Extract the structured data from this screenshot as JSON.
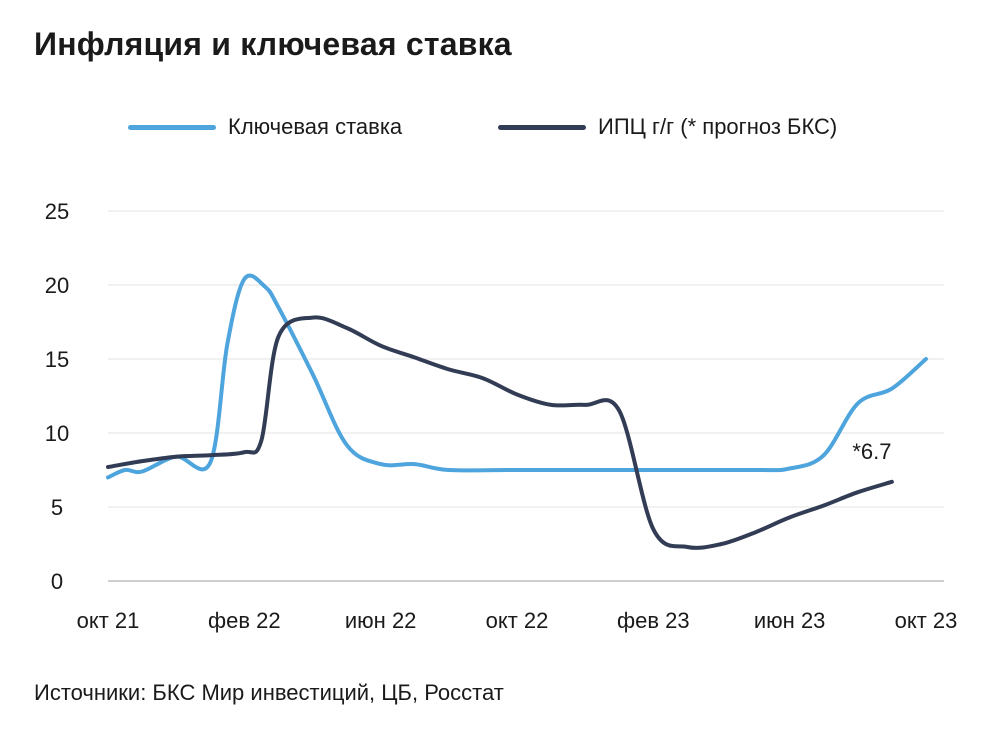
{
  "chart_data": {
    "type": "line",
    "title": "Инфляция и ключевая ставка",
    "x_ticks": [
      "окт 21",
      "фев 22",
      "июн 22",
      "окт 22",
      "фев 23",
      "июн 23",
      "окт 23"
    ],
    "yticks": [
      "0",
      "5",
      "10",
      "15",
      "20",
      "25"
    ],
    "ylim": [
      0,
      25
    ],
    "grid": true,
    "legend_position": "top",
    "series": [
      {
        "name": "Ключевая ставка",
        "color": "#4ea4dc",
        "points": [
          [
            0,
            7.0
          ],
          [
            0.5,
            7.5
          ],
          [
            1,
            7.4
          ],
          [
            2,
            8.4
          ],
          [
            3,
            8.0
          ],
          [
            3.5,
            16.0
          ],
          [
            4,
            20.4
          ],
          [
            4.6,
            19.9
          ],
          [
            5,
            18.5
          ],
          [
            6,
            14.0
          ],
          [
            7,
            9.2
          ],
          [
            8,
            7.9
          ],
          [
            9,
            7.9
          ],
          [
            10,
            7.5
          ],
          [
            12,
            7.5
          ],
          [
            16,
            7.5
          ],
          [
            19,
            7.5
          ],
          [
            20,
            7.6
          ],
          [
            21,
            8.5
          ],
          [
            22,
            12.0
          ],
          [
            23,
            13.0
          ],
          [
            24,
            15.0
          ]
        ]
      },
      {
        "name": "ИПЦ г/г (* прогноз БКС)",
        "color": "#323c55",
        "points": [
          [
            0,
            7.7
          ],
          [
            1,
            8.1
          ],
          [
            2,
            8.4
          ],
          [
            3,
            8.5
          ],
          [
            4,
            8.7
          ],
          [
            4.5,
            9.5
          ],
          [
            5,
            16.5
          ],
          [
            6,
            17.8
          ],
          [
            7,
            17.1
          ],
          [
            8,
            15.9
          ],
          [
            9,
            15.1
          ],
          [
            10,
            14.3
          ],
          [
            11,
            13.7
          ],
          [
            12,
            12.6
          ],
          [
            13,
            11.9
          ],
          [
            14,
            11.9
          ],
          [
            15,
            11.5
          ],
          [
            16,
            3.5
          ],
          [
            17,
            2.3
          ],
          [
            18,
            2.5
          ],
          [
            19,
            3.3
          ],
          [
            20,
            4.3
          ],
          [
            21,
            5.1
          ],
          [
            22,
            6.0
          ],
          [
            23,
            6.7
          ]
        ]
      }
    ],
    "annotations": [
      {
        "text": "*6.7",
        "x": 23,
        "y": 6.7
      }
    ]
  },
  "legend": [
    {
      "label": "Ключевая ставка",
      "color": "#4ea4dc"
    },
    {
      "label": "ИПЦ г/г (* прогноз БКС)",
      "color": "#323c55"
    }
  ],
  "source_text": "Источники: БКС Мир инвестиций, ЦБ, Росстат"
}
